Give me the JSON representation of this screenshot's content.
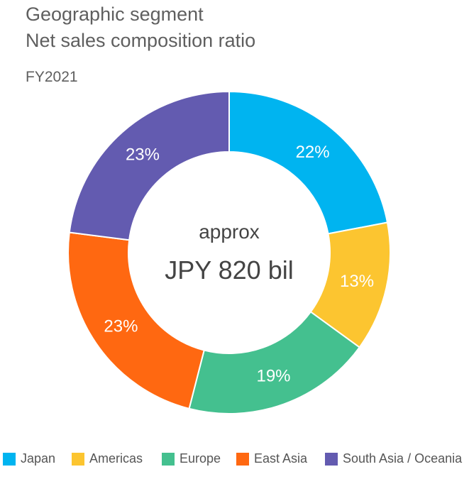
{
  "title_line1": "Geographic segment",
  "title_line2": "Net sales composition ratio",
  "period": "FY2021",
  "center": {
    "label": "approx",
    "value": "JPY 820 bil"
  },
  "chart_data": {
    "type": "pie",
    "donut": true,
    "title": "Geographic segment Net sales composition ratio",
    "subtitle": "FY2021",
    "unit": "%",
    "legend_position": "bottom",
    "slices": [
      {
        "name": "Japan",
        "value": 22,
        "label": "22%",
        "color": "#00b4f0"
      },
      {
        "name": "Americas",
        "value": 13,
        "label": "13%",
        "color": "#fcc530"
      },
      {
        "name": "Europe",
        "value": 19,
        "label": "19%",
        "color": "#44c08f"
      },
      {
        "name": "East Asia",
        "value": 23,
        "label": "23%",
        "color": "#ff6811"
      },
      {
        "name": "South Asia / Oceania",
        "value": 23,
        "label": "23%",
        "color": "#635bb0"
      }
    ]
  }
}
